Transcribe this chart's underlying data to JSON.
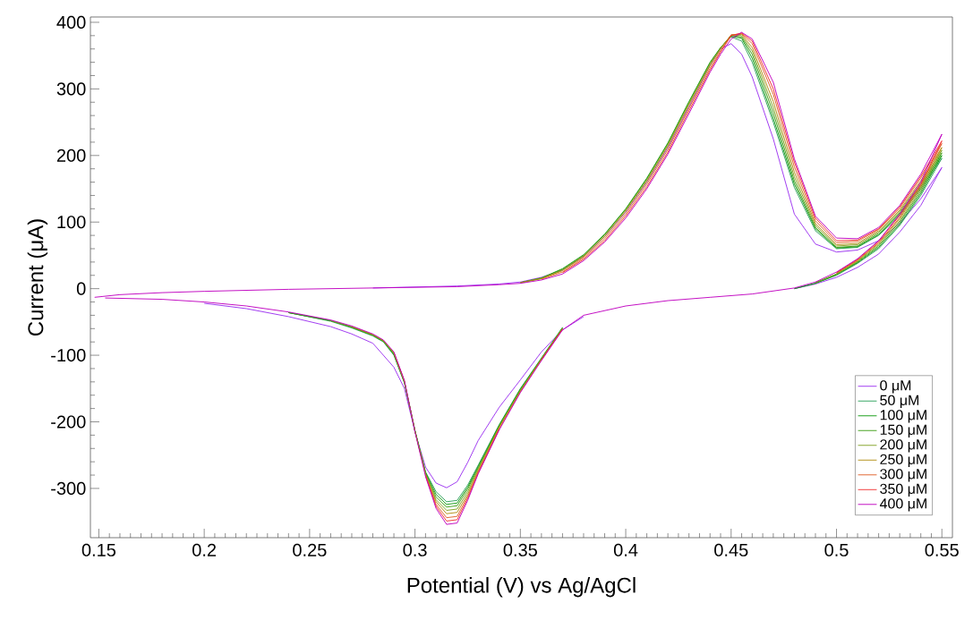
{
  "chart_data": {
    "type": "line",
    "xlabel": "Potential (V) vs Ag/AgCl",
    "ylabel": "Current (μA)",
    "xlim": [
      0.146,
      0.555
    ],
    "ylim": [
      -374,
      408
    ],
    "xticks": [
      0.15,
      0.2,
      0.25,
      0.3,
      0.35,
      0.4,
      0.45,
      0.5,
      0.55
    ],
    "yticks": [
      -300,
      -200,
      -100,
      0,
      100,
      200,
      300,
      400
    ],
    "legend": "bottom right",
    "line_style": "solid",
    "x": [
      0.148,
      0.16,
      0.18,
      0.2,
      0.24,
      0.28,
      0.32,
      0.34,
      0.35,
      0.36,
      0.37,
      0.38,
      0.39,
      0.4,
      0.41,
      0.42,
      0.43,
      0.44,
      0.445,
      0.45,
      0.455,
      0.46,
      0.47,
      0.48,
      0.49,
      0.5,
      0.51,
      0.52,
      0.53,
      0.54,
      0.55,
      0.54,
      0.53,
      0.52,
      0.51,
      0.5,
      0.49,
      0.48,
      0.46,
      0.44,
      0.42,
      0.4,
      0.38,
      0.37,
      0.36,
      0.35,
      0.34,
      0.33,
      0.325,
      0.32,
      0.315,
      0.31,
      0.305,
      0.3,
      0.295,
      0.29,
      0.285,
      0.28,
      0.27,
      0.26,
      0.24,
      0.22,
      0.2,
      0.18,
      0.153
    ],
    "series": [
      {
        "name": "0 μM",
        "color": "#9b30f0",
        "values": [
          null,
          null,
          null,
          null,
          null,
          1,
          4,
          7,
          10,
          17,
          28,
          48,
          78,
          115,
          160,
          212,
          273,
          335,
          360,
          368,
          352,
          318,
          225,
          112,
          67,
          55,
          58,
          72,
          98,
          135,
          182,
          125,
          85,
          52,
          32,
          17,
          7,
          0,
          null,
          null,
          null,
          null,
          -42,
          -62,
          -95,
          -137,
          -178,
          -228,
          -261,
          -290,
          -299,
          -292,
          -268,
          -215,
          -150,
          -118,
          -100,
          -82,
          -68,
          -57,
          -42,
          -30,
          -22,
          null,
          null
        ]
      },
      {
        "name": "50 μM",
        "color": "#2ca05a",
        "values": [
          null,
          null,
          null,
          null,
          null,
          null,
          null,
          null,
          null,
          null,
          null,
          null,
          null,
          null,
          null,
          null,
          null,
          null,
          362,
          378,
          372,
          340,
          250,
          152,
          87,
          60,
          62,
          80,
          110,
          150,
          196,
          140,
          95,
          60,
          38,
          20,
          8,
          0,
          null,
          null,
          null,
          null,
          null,
          -58,
          -104,
          -150,
          -204,
          -265,
          -295,
          -318,
          -320,
          -305,
          -275,
          -213,
          -142,
          -100,
          -80,
          -71,
          -59,
          -49,
          -36,
          null,
          null,
          null,
          null
        ]
      },
      {
        "name": "100 μM",
        "color": "#109a10",
        "values": [
          null,
          null,
          null,
          null,
          null,
          null,
          null,
          null,
          9,
          16,
          30,
          51,
          82,
          120,
          166,
          219,
          281,
          340,
          362,
          379,
          376,
          346,
          256,
          157,
          90,
          61,
          63,
          81,
          112,
          153,
          200,
          143,
          97,
          62,
          39,
          21,
          8,
          0,
          null,
          null,
          null,
          null,
          null,
          -59,
          -105,
          -151,
          -205,
          -267,
          -298,
          -322,
          -324,
          -309,
          -276,
          -213,
          -141,
          -99,
          -79,
          -70,
          -58,
          -48,
          -36,
          null,
          null,
          null,
          null
        ]
      },
      {
        "name": "150 μM",
        "color": "#3c9e14",
        "values": [
          null,
          null,
          null,
          null,
          null,
          null,
          null,
          null,
          9,
          16,
          29,
          50,
          81,
          119,
          165,
          218,
          280,
          339,
          362,
          380,
          378,
          352,
          264,
          162,
          92,
          62,
          64,
          83,
          114,
          156,
          204,
          146,
          100,
          64,
          40,
          22,
          9,
          null,
          null,
          null,
          null,
          null,
          null,
          -59,
          -105,
          -152,
          -206,
          -269,
          -301,
          -326,
          -328,
          -313,
          -277,
          -214,
          -140,
          -98,
          -79,
          -70,
          -58,
          -48,
          -36,
          null,
          null,
          null,
          null
        ]
      },
      {
        "name": "200 μM",
        "color": "#80a020",
        "values": [
          null,
          null,
          null,
          null,
          null,
          null,
          null,
          null,
          9,
          15,
          28,
          49,
          80,
          118,
          163,
          216,
          278,
          337,
          361,
          381,
          380,
          357,
          272,
          168,
          95,
          64,
          66,
          85,
          116,
          159,
          208,
          149,
          102,
          66,
          41,
          22,
          9,
          null,
          null,
          null,
          null,
          null,
          null,
          -60,
          -106,
          -153,
          -207,
          -271,
          -305,
          -331,
          -333,
          -317,
          -278,
          -214,
          -140,
          -97,
          -78,
          -69,
          -57,
          -48,
          null,
          null,
          null,
          null,
          null
        ]
      },
      {
        "name": "250 μM",
        "color": "#b08c10",
        "values": [
          null,
          null,
          null,
          null,
          null,
          null,
          null,
          null,
          9,
          15,
          27,
          48,
          78,
          116,
          161,
          214,
          276,
          335,
          360,
          381,
          382,
          362,
          281,
          175,
          98,
          66,
          68,
          87,
          118,
          162,
          212,
          152,
          105,
          68,
          42,
          23,
          null,
          null,
          null,
          null,
          null,
          null,
          null,
          -60,
          -106,
          -154,
          -208,
          -273,
          -309,
          -336,
          -338,
          -320,
          -279,
          -214,
          -139,
          -96,
          -78,
          -69,
          -57,
          null,
          null,
          null,
          null,
          null,
          null
        ]
      },
      {
        "name": "300 μM",
        "color": "#e0602a",
        "values": [
          null,
          null,
          null,
          null,
          null,
          null,
          null,
          null,
          null,
          14,
          25,
          46,
          75,
          112,
          157,
          209,
          271,
          331,
          357,
          381,
          383,
          368,
          292,
          183,
          102,
          69,
          71,
          89,
          121,
          166,
          218,
          155,
          107,
          69,
          43,
          24,
          null,
          null,
          null,
          null,
          null,
          null,
          null,
          -61,
          -107,
          -155,
          -210,
          -275,
          -312,
          -342,
          -344,
          -324,
          -280,
          null,
          -139,
          -96,
          null,
          null,
          null,
          null,
          null,
          null,
          null,
          null,
          null
        ]
      },
      {
        "name": "350 μM",
        "color": "#f03030",
        "values": [
          null,
          null,
          null,
          null,
          null,
          null,
          null,
          null,
          null,
          null,
          24,
          44,
          72,
          109,
          153,
          205,
          267,
          328,
          355,
          380,
          384,
          372,
          300,
          190,
          106,
          72,
          73,
          90,
          123,
          169,
          222,
          157,
          110,
          71,
          44,
          24,
          null,
          null,
          null,
          null,
          null,
          null,
          null,
          -61,
          -107,
          null,
          -211,
          -277,
          -315,
          -347,
          -349,
          -327,
          -281,
          null,
          null,
          null,
          null,
          null,
          null,
          null,
          null,
          null,
          null,
          null,
          null
        ]
      },
      {
        "name": "400 μM",
        "color": "#c000c0",
        "values": [
          -13,
          -9,
          -6,
          -4,
          -1,
          1,
          3,
          6,
          8,
          13,
          22,
          42,
          70,
          106,
          150,
          202,
          263,
          325,
          352,
          375,
          385,
          375,
          310,
          195,
          109,
          76,
          75,
          92,
          125,
          172,
          232,
          160,
          112,
          72,
          45,
          25,
          10,
          1,
          -8,
          -13,
          -18,
          -26,
          -40,
          -62,
          -108,
          -156,
          -212,
          -278,
          -318,
          -352,
          -354,
          -330,
          -282,
          -215,
          -138,
          -95,
          -77,
          -68,
          -56,
          -47,
          -35,
          -26,
          -20,
          -16,
          -14
        ]
      }
    ]
  }
}
